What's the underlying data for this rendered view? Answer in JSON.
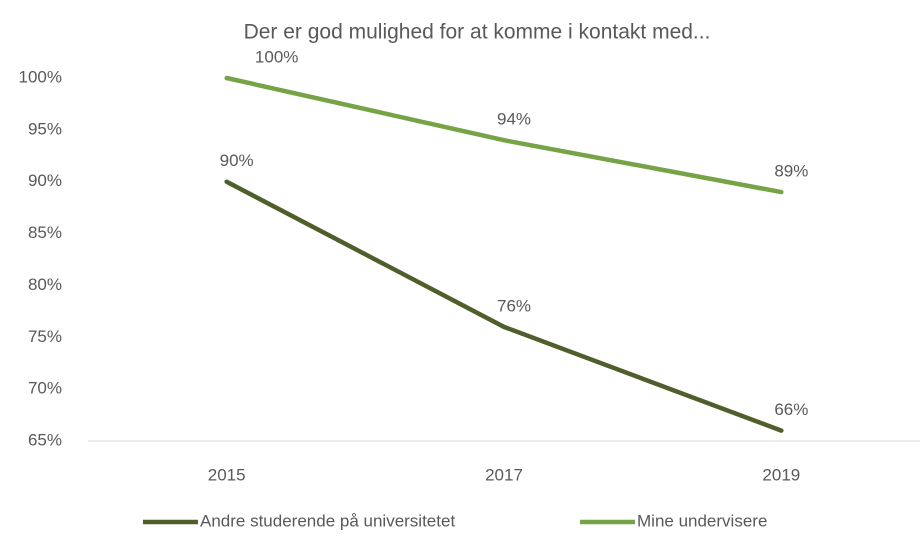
{
  "chart_data": {
    "type": "line",
    "title": "Der er god mulighed for at komme i kontakt med...",
    "categories": [
      "2015",
      "2017",
      "2019"
    ],
    "series": [
      {
        "name": "Andre studerende på universitetet",
        "color": "#4e5f2b",
        "values": [
          90,
          76,
          66
        ],
        "value_labels": [
          "90%",
          "76%",
          "66%"
        ]
      },
      {
        "name": "Mine undervisere",
        "color": "#77a347",
        "values": [
          100,
          94,
          89
        ],
        "value_labels": [
          "100%",
          "94%",
          "89%"
        ]
      }
    ],
    "ylim": [
      65,
      100
    ],
    "yticks": [
      {
        "value": 65,
        "label": "65%"
      },
      {
        "value": 70,
        "label": "70%"
      },
      {
        "value": 75,
        "label": "75%"
      },
      {
        "value": 80,
        "label": "80%"
      },
      {
        "value": 85,
        "label": "85%"
      },
      {
        "value": 90,
        "label": "90%"
      },
      {
        "value": 95,
        "label": "95%"
      },
      {
        "value": 100,
        "label": "100%"
      }
    ],
    "grid": false,
    "legend": "bottom"
  }
}
